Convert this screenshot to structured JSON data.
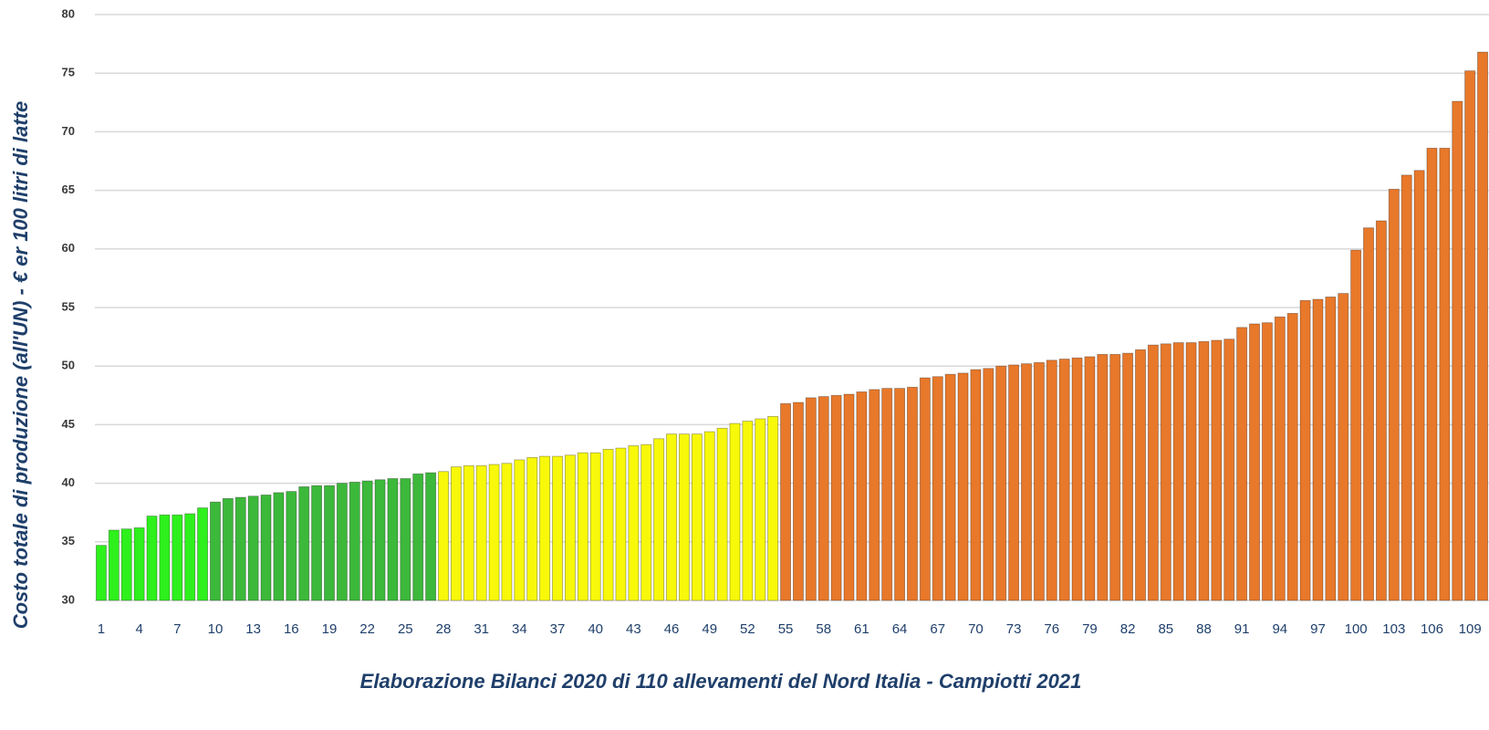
{
  "chart_data": {
    "type": "bar",
    "title": "Elaborazione Bilanci 2020 di 110 allevamenti del Nord Italia - Campiotti 2021",
    "y_label": "Costo totale di produzione (all'UN) - € er 100 litri di latte",
    "categories": [
      "1",
      null,
      null,
      "4",
      null,
      null,
      "7",
      null,
      null,
      "10",
      null,
      null,
      "13",
      null,
      null,
      "16",
      null,
      null,
      "19",
      null,
      null,
      "22",
      null,
      null,
      "25",
      null,
      null,
      "28",
      null,
      null,
      "31",
      null,
      null,
      "34",
      null,
      null,
      "37",
      null,
      null,
      "40",
      null,
      null,
      "43",
      null,
      null,
      "46",
      null,
      null,
      "49",
      null,
      null,
      "52",
      null,
      null,
      "55",
      null,
      null,
      "58",
      null,
      null,
      "61",
      null,
      null,
      "64",
      null,
      null,
      "67",
      null,
      null,
      "70",
      null,
      null,
      "73",
      null,
      null,
      "76",
      null,
      null,
      "79",
      null,
      null,
      "82",
      null,
      null,
      "85",
      null,
      null,
      "88",
      null,
      null,
      "91",
      null,
      null,
      "94",
      null,
      null,
      "97",
      null,
      null,
      "100",
      null,
      null,
      "103",
      null,
      null,
      "106",
      null,
      null,
      "109",
      null
    ],
    "values": [
      34.7,
      36.0,
      36.1,
      36.2,
      37.2,
      37.3,
      37.3,
      37.4,
      37.9,
      38.4,
      38.7,
      38.8,
      38.9,
      39.0,
      39.2,
      39.3,
      39.7,
      39.8,
      39.8,
      40.0,
      40.1,
      40.2,
      40.3,
      40.4,
      40.4,
      40.8,
      40.9,
      41.0,
      41.4,
      41.5,
      41.5,
      41.6,
      41.7,
      42.0,
      42.2,
      42.3,
      42.3,
      42.4,
      42.6,
      42.6,
      42.9,
      43.0,
      43.2,
      43.3,
      43.8,
      44.2,
      44.2,
      44.2,
      44.4,
      44.7,
      45.1,
      45.3,
      45.5,
      45.7,
      46.8,
      46.9,
      47.3,
      47.4,
      47.5,
      47.6,
      47.8,
      48.0,
      48.1,
      48.1,
      48.2,
      49.0,
      49.1,
      49.3,
      49.4,
      49.7,
      49.8,
      50.0,
      50.1,
      50.2,
      50.3,
      50.5,
      50.6,
      50.7,
      50.8,
      51.0,
      51.0,
      51.1,
      51.4,
      51.8,
      51.9,
      52.0,
      52.0,
      52.1,
      52.2,
      52.3,
      53.3,
      53.6,
      53.7,
      54.2,
      54.5,
      55.6,
      55.7,
      55.9,
      56.2,
      59.9,
      61.8,
      62.4,
      65.1,
      66.3,
      66.7,
      68.6,
      68.6,
      72.6,
      75.2,
      76.8
    ],
    "colors": [
      "#2ef01c",
      "#2ef01c",
      "#2ef01c",
      "#2ef01c",
      "#2ef01c",
      "#2ef01c",
      "#2ef01c",
      "#2ef01c",
      "#2ef01c",
      "#3cb83a",
      "#3cb83a",
      "#3cb83a",
      "#3cb83a",
      "#3cb83a",
      "#3cb83a",
      "#3cb83a",
      "#3cb83a",
      "#3cb83a",
      "#3cb83a",
      "#3cb83a",
      "#3cb83a",
      "#3cb83a",
      "#3cb83a",
      "#3cb83a",
      "#3cb83a",
      "#3cb83a",
      "#3cb83a",
      "#f8f80a",
      "#f8f80a",
      "#f8f80a",
      "#f8f80a",
      "#f8f80a",
      "#f8f80a",
      "#f8f80a",
      "#f8f80a",
      "#f8f80a",
      "#f8f80a",
      "#f8f80a",
      "#f8f80a",
      "#f8f80a",
      "#f8f80a",
      "#f8f80a",
      "#f8f80a",
      "#f8f80a",
      "#f8f80a",
      "#f8f80a",
      "#f8f80a",
      "#f8f80a",
      "#f8f80a",
      "#f8f80a",
      "#f8f80a",
      "#f8f80a",
      "#f8f80a",
      "#f8f80a",
      "#e8782a",
      "#e8782a",
      "#e8782a",
      "#e8782a",
      "#e8782a",
      "#e8782a",
      "#e8782a",
      "#e8782a",
      "#e8782a",
      "#e8782a",
      "#e8782a",
      "#e8782a",
      "#e8782a",
      "#e8782a",
      "#e8782a",
      "#e8782a",
      "#e8782a",
      "#e8782a",
      "#e8782a",
      "#e8782a",
      "#e8782a",
      "#e8782a",
      "#e8782a",
      "#e8782a",
      "#e8782a",
      "#e8782a",
      "#e8782a",
      "#e8782a",
      "#e8782a",
      "#e8782a",
      "#e8782a",
      "#e8782a",
      "#e8782a",
      "#e8782a",
      "#e8782a",
      "#e8782a",
      "#e8782a",
      "#e8782a",
      "#e8782a",
      "#e8782a",
      "#e8782a",
      "#e8782a",
      "#e8782a",
      "#e8782a",
      "#e8782a",
      "#e8782a",
      "#e8782a",
      "#e8782a",
      "#e8782a",
      "#e8782a",
      "#e8782a",
      "#e8782a",
      "#e8782a",
      "#e8782a",
      "#e8782a",
      "#e8782a"
    ],
    "ylim": [
      30,
      80
    ],
    "yticks": [
      30,
      35,
      40,
      45,
      50,
      55,
      60,
      65,
      70,
      75,
      80
    ],
    "grid": true
  }
}
